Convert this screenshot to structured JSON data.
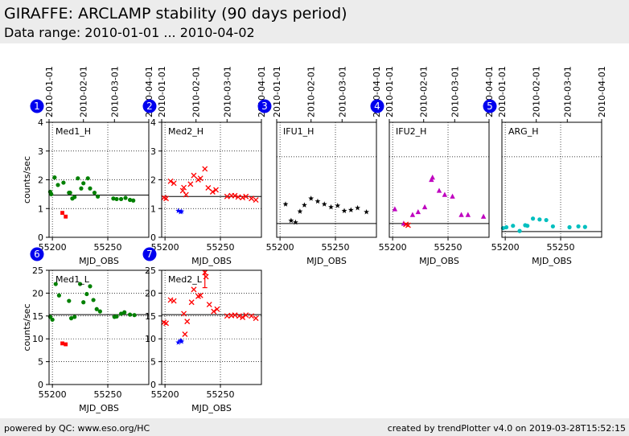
{
  "header": {
    "title": "GIRAFFE: ARCLAMP stability (90 days period)",
    "subtitle": "Data range: 2010-01-01 ... 2010-04-02"
  },
  "footer": {
    "left": "powered by QC: www.eso.org/HC",
    "right": "created by trendPlotter v4.0 on 2019-03-28T15:52:15"
  },
  "colors": {
    "header_bg": "#ececec",
    "badge": "#0000ee",
    "green": "#008000",
    "red": "#ff0000",
    "blue": "#0000ff",
    "black": "#000000",
    "magenta": "#bf00bf",
    "cyan": "#00bfbf"
  },
  "chart_data": [
    {
      "type": "scatter",
      "badge": "1",
      "panel_label": "Med1_H",
      "xlabel": "MJD_OBS",
      "ylabel": "counts/sec",
      "xlim": [
        55197,
        55287
      ],
      "ylim": [
        0,
        4
      ],
      "xticks": [
        55200,
        55250
      ],
      "yticks": [
        0,
        1,
        2,
        3,
        4
      ],
      "top_ticks": [
        "2010-01-01",
        "2010-02-01",
        "2010-03-01",
        "2010-04-01"
      ],
      "top_tick_mjd": [
        55197,
        55228,
        55256,
        55287
      ],
      "reference_line": 1.47,
      "series": [
        {
          "color": "#008000",
          "marker": "dot",
          "points": [
            [
              55198,
              1.58
            ],
            [
              55199,
              1.5
            ],
            [
              55202,
              2.08
            ],
            [
              55205,
              1.82
            ],
            [
              55210,
              1.9
            ],
            [
              55215,
              1.55
            ],
            [
              55216,
              1.55
            ],
            [
              55218,
              1.35
            ],
            [
              55220,
              1.4
            ],
            [
              55223,
              2.05
            ],
            [
              55226,
              1.7
            ],
            [
              55228,
              1.88
            ],
            [
              55232,
              2.05
            ],
            [
              55234,
              1.7
            ],
            [
              55238,
              1.55
            ],
            [
              55241,
              1.42
            ],
            [
              55255,
              1.35
            ],
            [
              55258,
              1.33
            ],
            [
              55262,
              1.33
            ],
            [
              55266,
              1.37
            ],
            [
              55270,
              1.3
            ],
            [
              55273,
              1.28
            ]
          ]
        },
        {
          "color": "#ff0000",
          "marker": "square",
          "points": [
            [
              55209,
              0.85
            ],
            [
              55212,
              0.72
            ]
          ]
        }
      ]
    },
    {
      "type": "scatter",
      "badge": "2",
      "panel_label": "Med2_H",
      "xlabel": "MJD_OBS",
      "ylabel": "",
      "xlim": [
        55197,
        55287
      ],
      "ylim": [
        0,
        4
      ],
      "xticks": [
        55200,
        55250
      ],
      "yticks": [
        0,
        1,
        2,
        3,
        4
      ],
      "top_ticks": [
        "2010-01-01",
        "2010-02-01",
        "2010-03-01",
        "2010-04-01"
      ],
      "top_tick_mjd": [
        55197,
        55228,
        55256,
        55287
      ],
      "reference_line": 1.42,
      "series": [
        {
          "color": "#ff0000",
          "marker": "x",
          "points": [
            [
              55199,
              1.38
            ],
            [
              55201,
              1.35
            ],
            [
              55205,
              1.95
            ],
            [
              55208,
              1.88
            ],
            [
              55216,
              1.62
            ],
            [
              55217,
              1.73
            ],
            [
              55219,
              1.48
            ],
            [
              55223,
              1.85
            ],
            [
              55226,
              2.15
            ],
            [
              55230,
              2.0
            ],
            [
              55232,
              2.05
            ],
            [
              55236,
              2.38
            ],
            [
              55239,
              1.72
            ],
            [
              55243,
              1.58
            ],
            [
              55246,
              1.65
            ],
            [
              55256,
              1.42
            ],
            [
              55260,
              1.45
            ],
            [
              55263,
              1.45
            ],
            [
              55266,
              1.4
            ],
            [
              55270,
              1.38
            ],
            [
              55273,
              1.42
            ],
            [
              55278,
              1.35
            ],
            [
              55282,
              1.3
            ]
          ]
        },
        {
          "color": "#0000ff",
          "marker": "star",
          "points": [
            [
              55212,
              0.92
            ],
            [
              55214,
              0.88
            ],
            [
              55215,
              0.9
            ]
          ]
        }
      ]
    },
    {
      "type": "scatter",
      "badge": "3",
      "panel_label": "IFU1_H",
      "xlabel": "MJD_OBS",
      "ylabel": "",
      "xlim": [
        55197,
        55287
      ],
      "ylim": [
        0,
        4
      ],
      "xticks": [
        55200,
        55250
      ],
      "yticks": [],
      "top_ticks": [
        "2010-01-01",
        "2010-02-01",
        "2010-03-01",
        "2010-04-01"
      ],
      "top_tick_mjd": [
        55197,
        55228,
        55256,
        55287
      ],
      "reference_line": 0.48,
      "series": [
        {
          "color": "#000000",
          "marker": "star",
          "points": [
            [
              55205,
              1.15
            ],
            [
              55210,
              0.58
            ],
            [
              55214,
              0.52
            ],
            [
              55218,
              0.9
            ],
            [
              55222,
              1.12
            ],
            [
              55228,
              1.35
            ],
            [
              55234,
              1.25
            ],
            [
              55240,
              1.15
            ],
            [
              55246,
              1.05
            ],
            [
              55252,
              1.1
            ],
            [
              55258,
              0.92
            ],
            [
              55264,
              0.95
            ],
            [
              55270,
              1.02
            ],
            [
              55278,
              0.88
            ]
          ]
        }
      ]
    },
    {
      "type": "scatter",
      "badge": "4",
      "panel_label": "IFU2_H",
      "xlabel": "MJD_OBS",
      "ylabel": "",
      "xlim": [
        55197,
        55287
      ],
      "ylim": [
        0,
        4
      ],
      "xticks": [
        55200,
        55250
      ],
      "yticks": [],
      "top_ticks": [
        "2010-01-01",
        "2010-02-01",
        "2010-03-01",
        "2010-04-01"
      ],
      "top_tick_mjd": [
        55197,
        55228,
        55256,
        55287
      ],
      "reference_line": 0.48,
      "series": [
        {
          "color": "#bf00bf",
          "marker": "triangle",
          "points": [
            [
              55202,
              0.98
            ],
            [
              55210,
              0.48
            ],
            [
              55218,
              0.78
            ],
            [
              55223,
              0.88
            ],
            [
              55229,
              1.05
            ],
            [
              55235,
              2.0
            ],
            [
              55236,
              2.08
            ],
            [
              55242,
              1.62
            ],
            [
              55247,
              1.48
            ],
            [
              55254,
              1.42
            ],
            [
              55262,
              0.78
            ],
            [
              55268,
              0.78
            ],
            [
              55282,
              0.72
            ]
          ]
        },
        {
          "color": "#ff0000",
          "marker": "x",
          "points": [
            [
              55212,
              0.45
            ],
            [
              55214,
              0.42
            ]
          ]
        }
      ]
    },
    {
      "type": "scatter",
      "badge": "5",
      "panel_label": "ARG_H",
      "xlabel": "MJD_OBS",
      "ylabel": "",
      "xlim": [
        55197,
        55287
      ],
      "ylim": [
        0,
        4
      ],
      "xticks": [
        55200,
        55250
      ],
      "yticks": [],
      "top_ticks": [
        "2010-01-01",
        "2010-02-01",
        "2010-03-01",
        "2010-04-01"
      ],
      "top_tick_mjd": [
        55197,
        55228,
        55256,
        55287
      ],
      "reference_line": 0.2,
      "series": [
        {
          "color": "#00bfbf",
          "marker": "dot",
          "points": [
            [
              55198,
              0.32
            ],
            [
              55201,
              0.35
            ],
            [
              55207,
              0.4
            ],
            [
              55213,
              0.22
            ],
            [
              55218,
              0.42
            ],
            [
              55220,
              0.4
            ],
            [
              55225,
              0.65
            ],
            [
              55231,
              0.62
            ],
            [
              55237,
              0.6
            ],
            [
              55243,
              0.38
            ],
            [
              55258,
              0.35
            ],
            [
              55266,
              0.38
            ],
            [
              55272,
              0.36
            ]
          ]
        }
      ]
    },
    {
      "type": "scatter",
      "badge": "6",
      "panel_label": "Med1_L",
      "xlabel": "MJD_OBS",
      "ylabel": "counts/sec",
      "xlim": [
        55197,
        55287
      ],
      "ylim": [
        0,
        25
      ],
      "xticks": [
        55200,
        55250
      ],
      "yticks": [
        0,
        5,
        10,
        15,
        20,
        25
      ],
      "reference_line": 15.3,
      "series": [
        {
          "color": "#008000",
          "marker": "dot",
          "points": [
            [
              55198,
              14.8
            ],
            [
              55200,
              14.2
            ],
            [
              55203,
              22
            ],
            [
              55206,
              19.5
            ],
            [
              55215,
              18.3
            ],
            [
              55217,
              14.5
            ],
            [
              55220,
              14.8
            ],
            [
              55225,
              22
            ],
            [
              55228,
              18
            ],
            [
              55231,
              19.8
            ],
            [
              55234,
              21.5
            ],
            [
              55237,
              18.5
            ],
            [
              55240,
              16.5
            ],
            [
              55243,
              16
            ],
            [
              55256,
              14.8
            ],
            [
              55258,
              14.9
            ],
            [
              55262,
              15.5
            ],
            [
              55265,
              15.8
            ],
            [
              55270,
              15.3
            ],
            [
              55274,
              15.2
            ]
          ]
        },
        {
          "color": "#ff0000",
          "marker": "square",
          "points": [
            [
              55209,
              9
            ],
            [
              55212,
              8.8
            ]
          ]
        }
      ]
    },
    {
      "type": "scatter",
      "badge": "7",
      "panel_label": "Med2_L",
      "xlabel": "MJD_OBS",
      "ylabel": "",
      "xlim": [
        55197,
        55287
      ],
      "ylim": [
        0,
        25
      ],
      "xticks": [
        55200,
        55250
      ],
      "yticks": [
        0,
        5,
        10,
        15,
        20,
        25
      ],
      "reference_line": 15.3,
      "series": [
        {
          "color": "#ff0000",
          "marker": "x",
          "points": [
            [
              55199,
              13.6
            ],
            [
              55201,
              13.4
            ],
            [
              55205,
              18.5
            ],
            [
              55208,
              18.3
            ],
            [
              55217,
              15.5
            ],
            [
              55218,
              11
            ],
            [
              55220,
              13.8
            ],
            [
              55224,
              18
            ],
            [
              55226,
              20.8
            ],
            [
              55230,
              19.3
            ],
            [
              55232,
              19.5
            ],
            [
              55236,
              24.5
            ],
            [
              55237,
              23.6
            ],
            [
              55240,
              17.5
            ],
            [
              55244,
              16
            ],
            [
              55247,
              16.5
            ],
            [
              55256,
              15
            ],
            [
              55260,
              15.1
            ],
            [
              55263,
              15.2
            ],
            [
              55267,
              15
            ],
            [
              55270,
              14.7
            ],
            [
              55273,
              15.2
            ],
            [
              55278,
              15
            ],
            [
              55282,
              14.5
            ]
          ]
        },
        {
          "color": "#0000ff",
          "marker": "star",
          "points": [
            [
              55212,
              9.2
            ],
            [
              55214,
              9.6
            ],
            [
              55215,
              9.4
            ]
          ]
        }
      ],
      "error_bars": [
        {
          "x": 55236,
          "low": 21.2,
          "high": 25,
          "color": "#ff0000"
        }
      ]
    }
  ]
}
